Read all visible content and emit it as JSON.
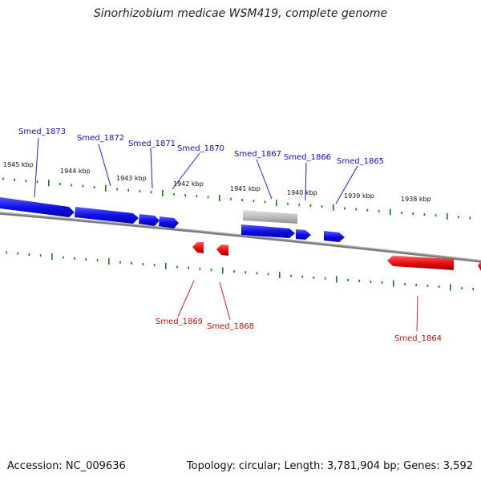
{
  "title": "Sinorhizobium medicae WSM419, complete genome",
  "footer": {
    "accession": "Accession: NC_009636",
    "summary": "Topology: circular; Length: 3,781,904 bp; Genes: 3,592"
  },
  "colors": {
    "forward": "#1010e8",
    "reverse": "#e81010",
    "other": "#bdbdbd",
    "backbone": "#808080",
    "tick": "#1a7a1a",
    "label_forward": "#1010c0",
    "label_reverse": "#c01010"
  },
  "map": {
    "kbp_labels": [
      "1945 kbp",
      "1944 kbp",
      "1943 kbp",
      "1942 kbp",
      "1941 kbp",
      "1940 kbp",
      "1939 kbp",
      "1938 kbp"
    ],
    "forward_genes": [
      "Smed_1873",
      "Smed_1872",
      "Smed_1871",
      "Smed_1870",
      "Smed_1867",
      "Smed_1866",
      "Smed_1865"
    ],
    "reverse_genes": [
      "Smed_1869",
      "Smed_1868",
      "Smed_1864"
    ]
  }
}
